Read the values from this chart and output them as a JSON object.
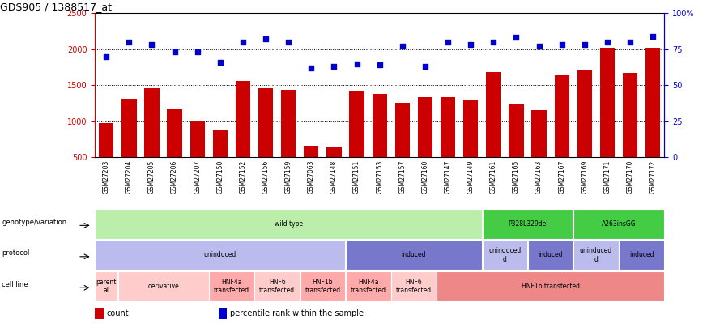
{
  "title": "GDS905 / 1388517_at",
  "samples": [
    "GSM27203",
    "GSM27204",
    "GSM27205",
    "GSM27206",
    "GSM27207",
    "GSM27150",
    "GSM27152",
    "GSM27156",
    "GSM27159",
    "GSM27063",
    "GSM27148",
    "GSM27151",
    "GSM27153",
    "GSM27157",
    "GSM27160",
    "GSM27147",
    "GSM27149",
    "GSM27161",
    "GSM27165",
    "GSM27163",
    "GSM27167",
    "GSM27169",
    "GSM27171",
    "GSM27170",
    "GSM27172"
  ],
  "counts": [
    980,
    1310,
    1460,
    1180,
    1010,
    880,
    1560,
    1460,
    1440,
    660,
    650,
    1420,
    1380,
    1260,
    1340,
    1340,
    1300,
    1680,
    1230,
    1150,
    1640,
    1700,
    2020,
    1670,
    2020
  ],
  "percentiles": [
    70,
    80,
    78,
    73,
    73,
    66,
    80,
    82,
    80,
    62,
    63,
    65,
    64,
    77,
    63,
    80,
    78,
    80,
    83,
    77,
    78,
    78,
    80,
    80,
    84
  ],
  "bar_color": "#cc0000",
  "dot_color": "#0000cc",
  "ylim_left": [
    500,
    2500
  ],
  "ylim_right": [
    0,
    100
  ],
  "yticks_left": [
    500,
    1000,
    1500,
    2000,
    2500
  ],
  "yticks_right": [
    0,
    25,
    50,
    75,
    100
  ],
  "ytick_labels_right": [
    "0",
    "25",
    "50",
    "75",
    "100%"
  ],
  "grid_values": [
    1000,
    1500,
    2000
  ],
  "annotation_rows": [
    {
      "label": "genotype/variation",
      "segments": [
        {
          "text": "wild type",
          "start": 0,
          "end": 17,
          "color": "#bbeeaa"
        },
        {
          "text": "P328L329del",
          "start": 17,
          "end": 21,
          "color": "#44cc44"
        },
        {
          "text": "A263insGG",
          "start": 21,
          "end": 25,
          "color": "#44cc44"
        }
      ]
    },
    {
      "label": "protocol",
      "segments": [
        {
          "text": "uninduced",
          "start": 0,
          "end": 11,
          "color": "#bbbbee"
        },
        {
          "text": "induced",
          "start": 11,
          "end": 17,
          "color": "#7777cc"
        },
        {
          "text": "uninduced\nd",
          "start": 17,
          "end": 19,
          "color": "#bbbbee"
        },
        {
          "text": "induced",
          "start": 19,
          "end": 21,
          "color": "#7777cc"
        },
        {
          "text": "uninduced\nd",
          "start": 21,
          "end": 23,
          "color": "#bbbbee"
        },
        {
          "text": "induced",
          "start": 23,
          "end": 25,
          "color": "#7777cc"
        }
      ]
    },
    {
      "label": "cell line",
      "segments": [
        {
          "text": "parent\nal",
          "start": 0,
          "end": 1,
          "color": "#ffcccc"
        },
        {
          "text": "derivative",
          "start": 1,
          "end": 5,
          "color": "#ffcccc"
        },
        {
          "text": "HNF4a\ntransfected",
          "start": 5,
          "end": 7,
          "color": "#ffaaaa"
        },
        {
          "text": "HNF6\ntransfected",
          "start": 7,
          "end": 9,
          "color": "#ffcccc"
        },
        {
          "text": "HNF1b\ntransfected",
          "start": 9,
          "end": 11,
          "color": "#ffaaaa"
        },
        {
          "text": "HNF4a\ntransfected",
          "start": 11,
          "end": 13,
          "color": "#ffaaaa"
        },
        {
          "text": "HNF6\ntransfected",
          "start": 13,
          "end": 15,
          "color": "#ffcccc"
        },
        {
          "text": "HNF1b transfected",
          "start": 15,
          "end": 25,
          "color": "#ee8888"
        }
      ]
    }
  ],
  "legend": [
    {
      "color": "#cc0000",
      "label": "count"
    },
    {
      "color": "#0000cc",
      "label": "percentile rank within the sample"
    }
  ]
}
